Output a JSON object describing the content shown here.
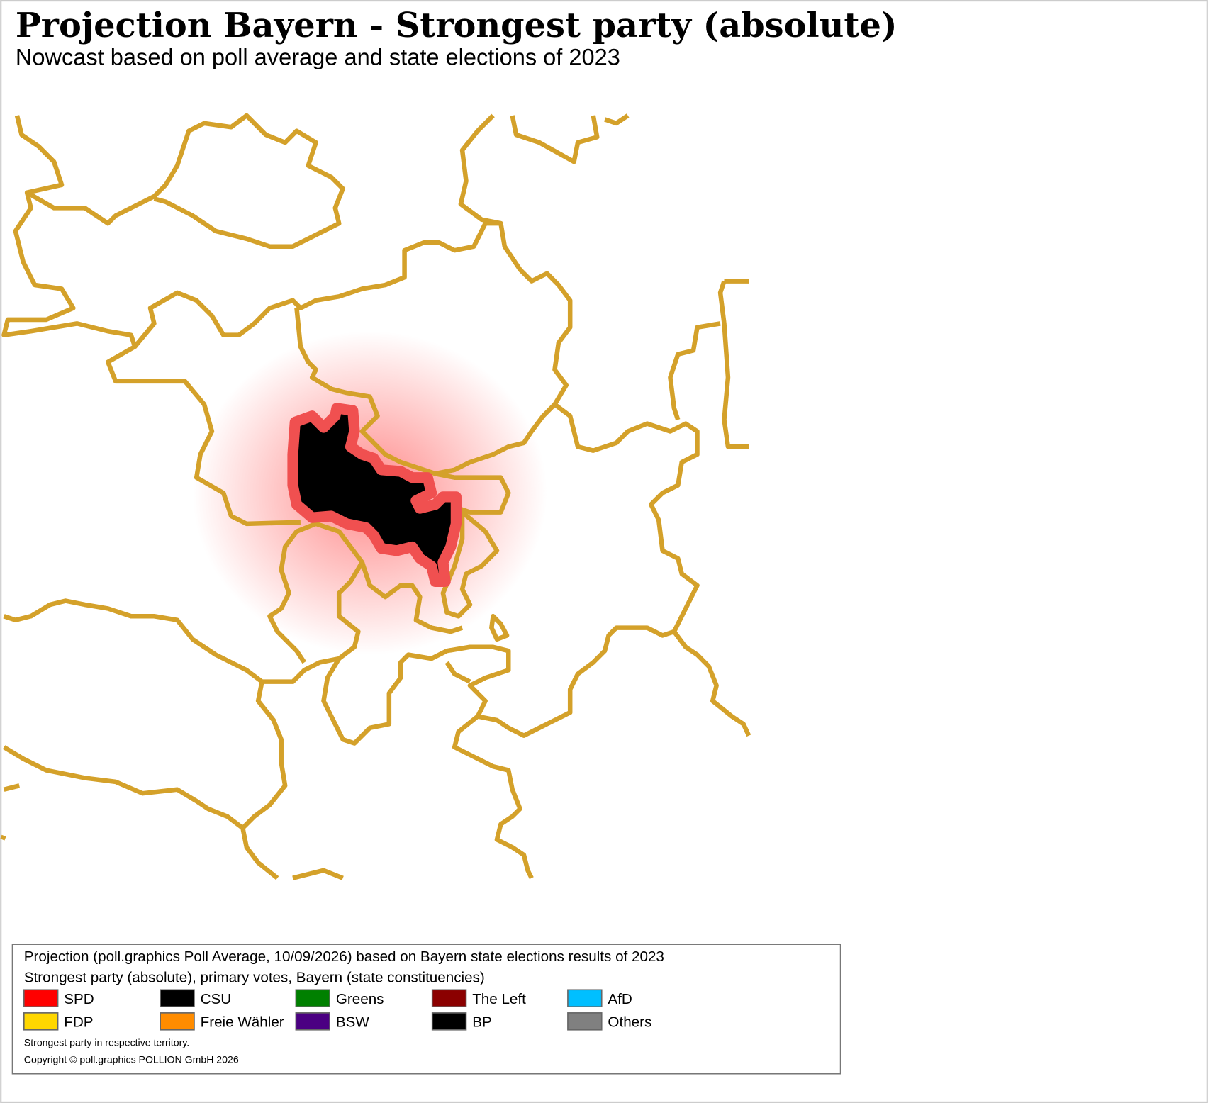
{
  "header": {
    "title": "Projection Bayern - Strongest party (absolute)",
    "subtitle": "Nowcast based on poll average and state elections of 2023"
  },
  "legend": {
    "lines": [
      "Projection (poll.graphics Poll Average, 10/09/2026) based on Bayern state elections results of 2023",
      "Strongest party (absolute), primary votes, Bayern (state constituencies)"
    ],
    "entries": [
      {
        "name": "SPD",
        "color": "#ff0000"
      },
      {
        "name": "CSU",
        "color": "#000000"
      },
      {
        "name": "Greens",
        "color": "#008000"
      },
      {
        "name": "The Left",
        "color": "#8b0000"
      },
      {
        "name": "AfD",
        "color": "#00bfff"
      },
      {
        "name": "FDP",
        "color": "#ffd700"
      },
      {
        "name": "Freie Wähler",
        "color": "#ff8c00"
      },
      {
        "name": "BSW",
        "color": "#4b0082"
      },
      {
        "name": "BP",
        "color": "#000000"
      },
      {
        "name": "Others",
        "color": "#808080"
      }
    ],
    "notes": [
      "Strongest party in respective territory.",
      "Copyright © poll.graphics POLLION GmbH 2026"
    ]
  }
}
